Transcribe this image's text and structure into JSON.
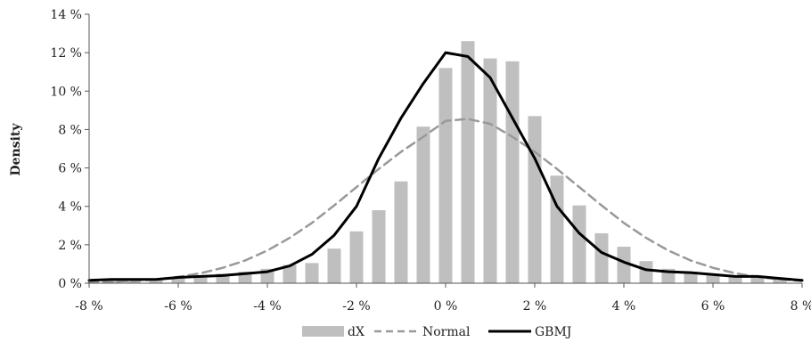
{
  "chart_data": {
    "type": "bar",
    "title": "",
    "xlabel": "",
    "ylabel": "Density",
    "xlim": [
      -8,
      8
    ],
    "ylim": [
      0,
      14
    ],
    "x_ticks": [
      -8,
      -6,
      -4,
      -2,
      0,
      2,
      4,
      6,
      8
    ],
    "x_tick_labels": [
      "-8 %",
      "-6 %",
      "-4 %",
      "-2 %",
      "0 %",
      "2 %",
      "4 %",
      "6 %",
      "8 %"
    ],
    "y_ticks": [
      0,
      2,
      4,
      6,
      8,
      10,
      12,
      14
    ],
    "y_tick_labels": [
      "0 %",
      "2 %",
      "4 %",
      "6 %",
      "8 %",
      "10 %",
      "12 %",
      "14 %"
    ],
    "grid": false,
    "legend": "bottom",
    "colors": {
      "bars": "#bfbfbf",
      "normal": "#999999",
      "gbmj": "#000000",
      "axis": "#555555"
    },
    "bars": {
      "name": "dX",
      "x": [
        -7.5,
        -7,
        -6.5,
        -6,
        -5.5,
        -5,
        -4.5,
        -4,
        -3.5,
        -3,
        -2.5,
        -2,
        -1.5,
        -1,
        -0.5,
        0,
        0.5,
        1,
        1.5,
        2,
        2.5,
        3,
        3.5,
        4,
        4.5,
        5,
        5.5,
        6,
        6.5,
        7,
        7.5
      ],
      "values": [
        0.15,
        0.2,
        0.2,
        0.25,
        0.35,
        0.5,
        0.6,
        0.75,
        0.95,
        1.05,
        1.8,
        2.7,
        3.8,
        5.3,
        8.15,
        11.2,
        12.6,
        11.7,
        11.55,
        8.7,
        5.6,
        4.05,
        2.6,
        1.9,
        1.15,
        0.75,
        0.6,
        0.5,
        0.4,
        0.35,
        0.25
      ]
    },
    "series": [
      {
        "name": "Normal",
        "style": "dashed",
        "x": [
          -8,
          -7.5,
          -7,
          -6.5,
          -6,
          -5.5,
          -5,
          -4.5,
          -4,
          -3.5,
          -3,
          -2.5,
          -2,
          -1.5,
          -1,
          -0.5,
          0,
          0.5,
          1,
          1.5,
          2,
          2.5,
          3,
          3.5,
          4,
          4.5,
          5,
          5.5,
          6,
          6.5,
          7,
          7.5,
          8
        ],
        "values": [
          0.04,
          0.07,
          0.12,
          0.2,
          0.33,
          0.52,
          0.8,
          1.18,
          1.7,
          2.36,
          3.14,
          4.05,
          5.0,
          5.95,
          6.84,
          7.62,
          8.45,
          8.55,
          8.3,
          7.62,
          6.84,
          5.95,
          5.0,
          4.05,
          3.14,
          2.36,
          1.7,
          1.18,
          0.8,
          0.52,
          0.33,
          0.2,
          0.12
        ]
      },
      {
        "name": "GBMJ",
        "style": "solid",
        "x": [
          -8,
          -7.5,
          -7,
          -6.5,
          -6,
          -5.5,
          -5,
          -4.5,
          -4,
          -3.5,
          -3,
          -2.5,
          -2,
          -1.5,
          -1,
          -0.5,
          0,
          0.5,
          1,
          1.5,
          2,
          2.5,
          3,
          3.5,
          4,
          4.5,
          5,
          5.5,
          6,
          6.5,
          7,
          7.5,
          8
        ],
        "values": [
          0.15,
          0.2,
          0.2,
          0.2,
          0.3,
          0.35,
          0.4,
          0.5,
          0.6,
          0.9,
          1.5,
          2.5,
          4.0,
          6.5,
          8.6,
          10.4,
          12.0,
          11.8,
          10.7,
          8.6,
          6.5,
          4.0,
          2.6,
          1.6,
          1.1,
          0.7,
          0.6,
          0.55,
          0.45,
          0.35,
          0.35,
          0.25,
          0.15
        ]
      }
    ]
  }
}
